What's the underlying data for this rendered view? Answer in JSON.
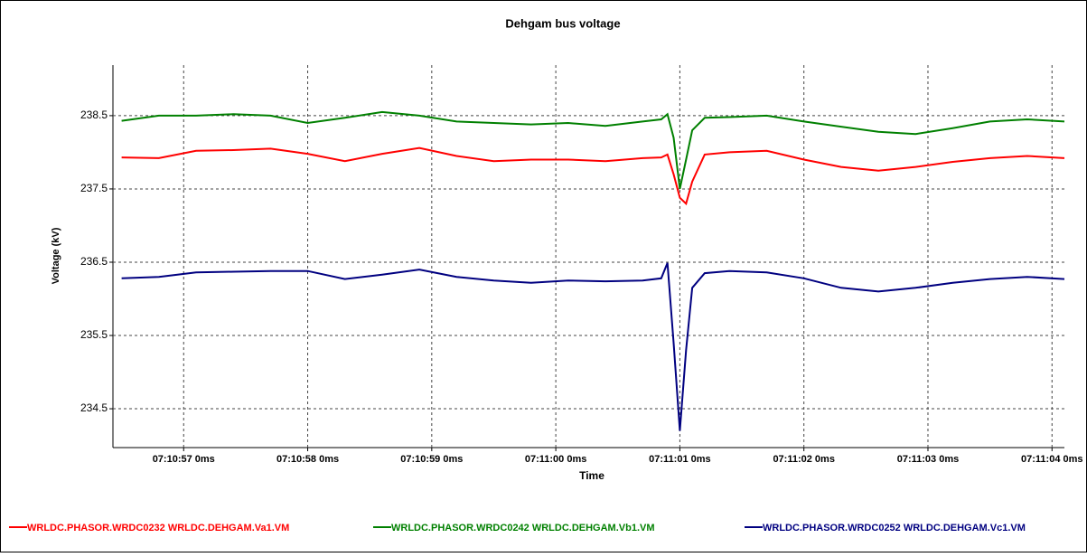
{
  "chart_data": {
    "type": "line",
    "title": "Dehgam bus voltage",
    "xlabel": "Time",
    "ylabel": "Voltage (kV)",
    "x": [
      25856.5,
      25856.8,
      25857.1,
      25857.4,
      25857.7,
      25858.0,
      25858.3,
      25858.6,
      25858.9,
      25859.2,
      25859.5,
      25859.8,
      25860.1,
      25860.4,
      25860.7,
      25860.85,
      25860.9,
      25860.95,
      25861.0,
      25861.05,
      25861.1,
      25861.2,
      25861.4,
      25861.7,
      25862.0,
      25862.3,
      25862.6,
      25862.9,
      25863.2,
      25863.5,
      25863.8,
      25864.1
    ],
    "series": [
      {
        "name": "WRLDC.PHASOR.WRDC0232 WRLDC.DEHGAM.Va1.VM",
        "color": "#ff0000",
        "values": [
          237.93,
          237.92,
          238.02,
          238.03,
          238.05,
          237.98,
          237.88,
          237.98,
          238.06,
          237.95,
          237.88,
          237.9,
          237.9,
          237.88,
          237.92,
          237.93,
          237.97,
          237.7,
          237.38,
          237.3,
          237.6,
          237.97,
          238.0,
          238.02,
          237.9,
          237.8,
          237.75,
          237.8,
          237.87,
          237.92,
          237.95,
          237.92
        ]
      },
      {
        "name": "WRLDC.PHASOR.WRDC0242 WRLDC.DEHGAM.Vb1.VM",
        "color": "#008000",
        "values": [
          238.43,
          238.5,
          238.5,
          238.52,
          238.5,
          238.4,
          238.47,
          238.55,
          238.5,
          238.42,
          238.4,
          238.38,
          238.4,
          238.36,
          238.42,
          238.45,
          238.52,
          238.2,
          237.5,
          237.9,
          238.3,
          238.47,
          238.48,
          238.5,
          238.42,
          238.35,
          238.28,
          238.25,
          238.33,
          238.42,
          238.45,
          238.42
        ]
      },
      {
        "name": "WRLDC.PHASOR.WRDC0252 WRLDC.DEHGAM.Vc1.VM",
        "color": "#000080",
        "values": [
          236.28,
          236.3,
          236.36,
          236.37,
          236.38,
          236.38,
          236.27,
          236.33,
          236.4,
          236.3,
          236.25,
          236.22,
          236.25,
          236.24,
          236.25,
          236.28,
          236.49,
          235.4,
          234.2,
          235.3,
          236.15,
          236.35,
          236.38,
          236.36,
          236.28,
          236.15,
          236.1,
          236.15,
          236.22,
          236.27,
          236.3,
          236.27
        ]
      }
    ],
    "xlim": [
      25856.43,
      25864.1
    ],
    "xticks": [
      {
        "value": 25857,
        "label": "07:10:57 0ms"
      },
      {
        "value": 25858,
        "label": "07:10:58 0ms"
      },
      {
        "value": 25859,
        "label": "07:10:59 0ms"
      },
      {
        "value": 25860,
        "label": "07:11:00 0ms"
      },
      {
        "value": 25861,
        "label": "07:11:01 0ms"
      },
      {
        "value": 25862,
        "label": "07:11:02 0ms"
      },
      {
        "value": 25863,
        "label": "07:11:03 0ms"
      },
      {
        "value": 25864,
        "label": "07:11:04 0ms"
      }
    ],
    "ylim": [
      233.97,
      239.19
    ],
    "yticks": [
      234.5,
      235.5,
      236.5,
      237.5,
      238.5
    ],
    "grid": true,
    "legend": "bottom"
  }
}
